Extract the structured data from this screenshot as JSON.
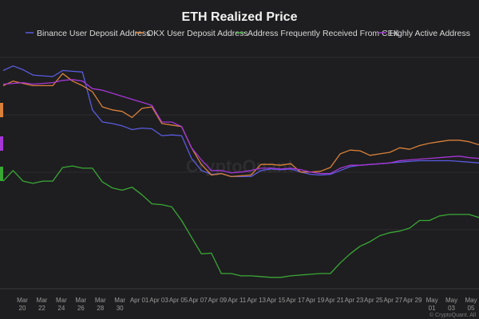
{
  "chart_data": {
    "type": "line",
    "title": "ETH Realized Price",
    "x": [
      "Mar 19",
      "Mar 20",
      "Mar 21",
      "Mar 22",
      "Mar 23",
      "Mar 24",
      "Mar 25",
      "Mar 26",
      "Mar 27",
      "Mar 28",
      "Mar 29",
      "Mar 30",
      "Mar 31",
      "Apr 01",
      "Apr 02",
      "Apr 03",
      "Apr 04",
      "Apr 05",
      "Apr 06",
      "Apr 07",
      "Apr 08",
      "Apr 09",
      "Apr 10",
      "Apr 11",
      "Apr 12",
      "Apr 13",
      "Apr 14",
      "Apr 15",
      "Apr 16",
      "Apr 17",
      "Apr 18",
      "Apr 19",
      "Apr 20",
      "Apr 21",
      "Apr 22",
      "Apr 23",
      "Apr 24",
      "Apr 25",
      "Apr 26",
      "Apr 27",
      "Apr 28",
      "Apr 29",
      "Apr 30",
      "May 01",
      "May 02",
      "May 03",
      "May 04",
      "May 05",
      "May 06"
    ],
    "x_tick_labels": [
      {
        "top": "Mar",
        "bottom": "20"
      },
      {
        "top": "Mar",
        "bottom": "22"
      },
      {
        "top": "Mar",
        "bottom": "24"
      },
      {
        "top": "Mar",
        "bottom": "26"
      },
      {
        "top": "Mar",
        "bottom": "28"
      },
      {
        "top": "Mar",
        "bottom": "30"
      },
      {
        "top": "Apr 01",
        "bottom": ""
      },
      {
        "top": "Apr 03",
        "bottom": ""
      },
      {
        "top": "Apr 05",
        "bottom": ""
      },
      {
        "top": "Apr 07",
        "bottom": ""
      },
      {
        "top": "Apr 09",
        "bottom": ""
      },
      {
        "top": "Apr 11",
        "bottom": ""
      },
      {
        "top": "Apr 13",
        "bottom": ""
      },
      {
        "top": "Apr 15",
        "bottom": ""
      },
      {
        "top": "Apr 17",
        "bottom": ""
      },
      {
        "top": "Apr 19",
        "bottom": ""
      },
      {
        "top": "Apr 21",
        "bottom": ""
      },
      {
        "top": "Apr 23",
        "bottom": ""
      },
      {
        "top": "Apr 25",
        "bottom": ""
      },
      {
        "top": "Apr 27",
        "bottom": ""
      },
      {
        "top": "Apr 29",
        "bottom": ""
      },
      {
        "top": "May",
        "bottom": "01"
      },
      {
        "top": "May",
        "bottom": "03"
      },
      {
        "top": "May",
        "bottom": "05"
      }
    ],
    "y_axis_labels": "hidden (only colored value markers visible on left edge)",
    "ylim": [
      1100,
      2700
    ],
    "grid": true,
    "legend_position": "top",
    "series": [
      {
        "name": "Binance User Deposit Address",
        "color": "#5b5be0",
        "values": [
          2540,
          2570,
          2545,
          2510,
          2505,
          2500,
          2540,
          2535,
          2530,
          2280,
          2200,
          2190,
          2175,
          2150,
          2160,
          2155,
          2110,
          2115,
          2110,
          1960,
          1880,
          1855,
          1860,
          1840,
          1840,
          1840,
          1880,
          1890,
          1885,
          1890,
          1870,
          1855,
          1850,
          1855,
          1880,
          1905,
          1915,
          1920,
          1925,
          1930,
          1935,
          1940,
          1945,
          1945,
          1945,
          1945,
          1940,
          1935,
          1930
        ]
      },
      {
        "name": "OKX User Deposit Address",
        "color": "#d9803a",
        "values": [
          2440,
          2470,
          2455,
          2440,
          2440,
          2440,
          2520,
          2470,
          2440,
          2400,
          2300,
          2280,
          2270,
          2230,
          2290,
          2300,
          2190,
          2180,
          2170,
          2030,
          1920,
          1850,
          1860,
          1840,
          1845,
          1850,
          1920,
          1920,
          1915,
          1925,
          1870,
          1870,
          1875,
          1900,
          1990,
          2015,
          2010,
          1980,
          1990,
          2000,
          2030,
          2020,
          2045,
          2060,
          2070,
          2080,
          2080,
          2070,
          2050
        ]
      },
      {
        "name": "Address Frequently Received From CEX",
        "color": "#3aa835",
        "values": [
          1810,
          1880,
          1810,
          1795,
          1810,
          1810,
          1900,
          1910,
          1895,
          1895,
          1805,
          1765,
          1750,
          1770,
          1720,
          1660,
          1655,
          1640,
          1550,
          1440,
          1330,
          1335,
          1200,
          1200,
          1185,
          1185,
          1180,
          1175,
          1175,
          1185,
          1190,
          1195,
          1200,
          1200,
          1270,
          1330,
          1380,
          1410,
          1450,
          1470,
          1480,
          1500,
          1550,
          1550,
          1580,
          1590,
          1590,
          1590,
          1570
        ]
      },
      {
        "name": "Highly Active Address",
        "color": "#a536d6",
        "values": [
          2450,
          2455,
          2460,
          2450,
          2455,
          2460,
          2475,
          2480,
          2470,
          2420,
          2410,
          2390,
          2370,
          2350,
          2330,
          2310,
          2200,
          2200,
          2170,
          2030,
          1950,
          1880,
          1880,
          1865,
          1870,
          1880,
          1895,
          1895,
          1890,
          1895,
          1885,
          1870,
          1860,
          1860,
          1895,
          1915,
          1915,
          1920,
          1925,
          1930,
          1945,
          1950,
          1955,
          1960,
          1965,
          1970,
          1975,
          1965,
          1960
        ]
      }
    ]
  },
  "watermark": "CryptoQuant",
  "credit": "© CryptoQuant. All"
}
